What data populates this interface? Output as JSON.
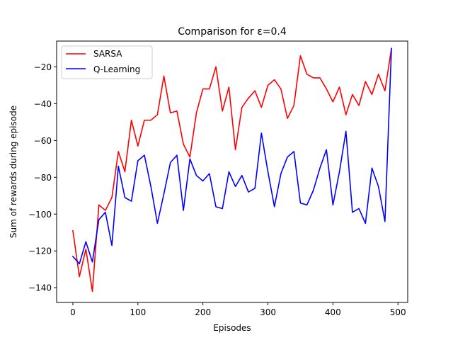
{
  "chart_data": {
    "type": "line",
    "title": "Comparison for ε=0.4",
    "xlabel": "Episodes",
    "ylabel": "Sum of rewards during episode",
    "xlim": [
      -25,
      515
    ],
    "ylim": [
      -148,
      -6
    ],
    "xticks": [
      0,
      100,
      200,
      300,
      400,
      500
    ],
    "yticks": [
      -140,
      -120,
      -100,
      -80,
      -60,
      -40,
      -20
    ],
    "xtick_labels": [
      "0",
      "100",
      "200",
      "300",
      "400",
      "500"
    ],
    "ytick_labels": [
      "−140",
      "−120",
      "−100",
      "−80",
      "−60",
      "−40",
      "−20"
    ],
    "grid": false,
    "legend_position": "top-left",
    "x": [
      0,
      10,
      20,
      30,
      40,
      50,
      60,
      70,
      80,
      90,
      100,
      110,
      120,
      130,
      140,
      150,
      160,
      170,
      180,
      190,
      200,
      210,
      220,
      230,
      240,
      250,
      260,
      270,
      280,
      290,
      300,
      310,
      320,
      330,
      340,
      350,
      360,
      370,
      380,
      390,
      400,
      410,
      420,
      430,
      440,
      450,
      460,
      470,
      480,
      490
    ],
    "series": [
      {
        "name": "SARSA",
        "color": "#ff0000",
        "values": [
          -109,
          -134,
          -119,
          -142,
          -95,
          -98,
          -91,
          -66,
          -77,
          -49,
          -63,
          -49,
          -49,
          -46,
          -25,
          -45,
          -44,
          -62,
          -69,
          -45,
          -32,
          -32,
          -20,
          -44,
          -31,
          -65,
          -42,
          -37,
          -33,
          -42,
          -30,
          -27,
          -32,
          -48,
          -41,
          -14,
          -24,
          -26,
          -26,
          -32,
          -39,
          -31,
          -46,
          -35,
          -41,
          -28,
          -35,
          -24,
          -33,
          -10
        ]
      },
      {
        "name": "Q-Learning",
        "color": "#0000ff",
        "values": [
          -123,
          -127,
          -115,
          -126,
          -103,
          -99,
          -117,
          -74,
          -91,
          -93,
          -71,
          -68,
          -85,
          -105,
          -89,
          -72,
          -68,
          -98,
          -70,
          -79,
          -82,
          -78,
          -96,
          -97,
          -77,
          -85,
          -79,
          -88,
          -86,
          -56,
          -77,
          -96,
          -78,
          -69,
          -66,
          -94,
          -95,
          -87,
          -75,
          -65,
          -95,
          -77,
          -55,
          -99,
          -97,
          -105,
          -75,
          -85,
          -104,
          -10
        ]
      }
    ]
  }
}
